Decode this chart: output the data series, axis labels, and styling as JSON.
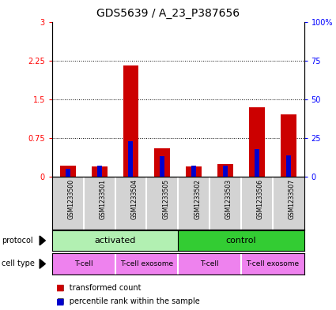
{
  "title": "GDS5639 / A_23_P387656",
  "samples": [
    "GSM1233500",
    "GSM1233501",
    "GSM1233504",
    "GSM1233505",
    "GSM1233502",
    "GSM1233503",
    "GSM1233506",
    "GSM1233507"
  ],
  "red_values": [
    0.22,
    0.2,
    2.15,
    0.55,
    0.2,
    0.25,
    1.35,
    1.2
  ],
  "blue_values": [
    5.0,
    7.0,
    23.0,
    13.0,
    7.0,
    7.0,
    18.0,
    14.0
  ],
  "ylim_left": [
    0,
    3
  ],
  "ylim_right": [
    0,
    100
  ],
  "yticks_left": [
    0,
    0.75,
    1.5,
    2.25,
    3
  ],
  "yticks_right": [
    0,
    25,
    50,
    75,
    100
  ],
  "ytick_labels_left": [
    "0",
    "0.75",
    "1.5",
    "2.25",
    "3"
  ],
  "ytick_labels_right": [
    "0",
    "25",
    "50",
    "75",
    "100%"
  ],
  "protocol_color_light": "#b2f0b2",
  "protocol_color_dark": "#33cc33",
  "cell_type_color": "#ee82ee",
  "bar_color_red": "#cc0000",
  "bar_color_blue": "#0000cc",
  "bar_width": 0.5,
  "bg_color_label": "#d3d3d3",
  "title_fontsize": 10,
  "tick_fontsize": 7,
  "annotation_fontsize": 8
}
